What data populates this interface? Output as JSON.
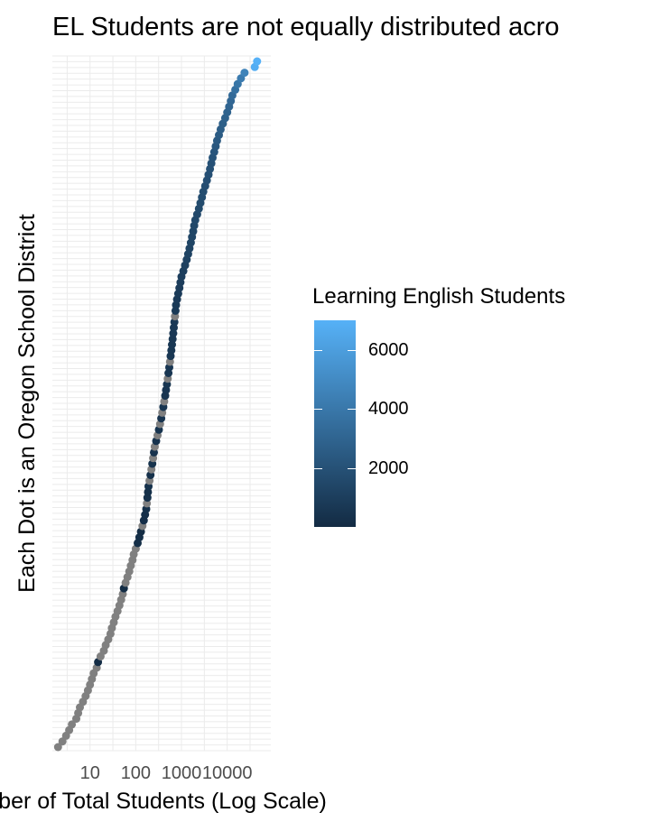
{
  "chart_data": {
    "type": "scatter",
    "title": "EL Students are not equally distributed acro",
    "xlabel": "ber of Total Students (Log Scale)",
    "ylabel": "Each Dot is an Oregon School District",
    "x_scale": "log10",
    "xlim": [
      1.5,
      90000
    ],
    "x_ticks": [
      10,
      100,
      1000,
      10000
    ],
    "x_tick_labels": [
      "10",
      "100",
      "1000",
      "10000"
    ],
    "y_ticks_labels_shown": false,
    "grid": true,
    "legend_position": "right",
    "color_scale": {
      "title": "Learning English Students",
      "low_color": "#132b43",
      "high_color": "#56b1f7",
      "na_color": "#808080",
      "range": [
        0,
        7000
      ],
      "breaks": [
        2000,
        4000,
        6000
      ],
      "break_labels": [
        "2000",
        "4000",
        "6000"
      ]
    },
    "series_description": "Districts ranked by total enrollment; gray = no EL data reported",
    "points": [
      [
        2,
        null
      ],
      [
        2.5,
        null
      ],
      [
        3,
        null
      ],
      [
        3.5,
        null
      ],
      [
        4,
        null
      ],
      [
        5,
        null
      ],
      [
        5.5,
        null
      ],
      [
        6,
        null
      ],
      [
        7,
        null
      ],
      [
        8,
        null
      ],
      [
        9,
        null
      ],
      [
        10,
        null
      ],
      [
        11,
        null
      ],
      [
        12,
        null
      ],
      [
        14,
        null
      ],
      [
        15,
        120
      ],
      [
        17,
        null
      ],
      [
        20,
        null
      ],
      [
        22,
        null
      ],
      [
        25,
        null
      ],
      [
        28,
        null
      ],
      [
        30,
        null
      ],
      [
        33,
        null
      ],
      [
        36,
        null
      ],
      [
        40,
        null
      ],
      [
        44,
        null
      ],
      [
        48,
        null
      ],
      [
        52,
        null
      ],
      [
        55,
        90
      ],
      [
        60,
        null
      ],
      [
        66,
        null
      ],
      [
        72,
        null
      ],
      [
        78,
        null
      ],
      [
        85,
        null
      ],
      [
        90,
        null
      ],
      [
        100,
        null
      ],
      [
        110,
        150
      ],
      [
        120,
        200
      ],
      [
        130,
        80
      ],
      [
        140,
        null
      ],
      [
        150,
        180
      ],
      [
        160,
        220
      ],
      [
        170,
        260
      ],
      [
        175,
        null
      ],
      [
        180,
        300
      ],
      [
        185,
        250
      ],
      [
        190,
        350
      ],
      [
        200,
        null
      ],
      [
        210,
        320
      ],
      [
        220,
        null
      ],
      [
        230,
        400
      ],
      [
        240,
        null
      ],
      [
        250,
        380
      ],
      [
        260,
        null
      ],
      [
        280,
        420
      ],
      [
        300,
        null
      ],
      [
        320,
        450
      ],
      [
        340,
        null
      ],
      [
        360,
        480
      ],
      [
        380,
        null
      ],
      [
        400,
        500
      ],
      [
        420,
        null
      ],
      [
        440,
        520
      ],
      [
        460,
        540
      ],
      [
        480,
        560
      ],
      [
        500,
        null
      ],
      [
        520,
        580
      ],
      [
        540,
        600
      ],
      [
        560,
        null
      ],
      [
        580,
        620
      ],
      [
        600,
        640
      ],
      [
        620,
        660
      ],
      [
        640,
        680
      ],
      [
        660,
        700
      ],
      [
        680,
        720
      ],
      [
        700,
        740
      ],
      [
        720,
        null
      ],
      [
        740,
        760
      ],
      [
        760,
        780
      ],
      [
        800,
        800
      ],
      [
        850,
        850
      ],
      [
        900,
        900
      ],
      [
        950,
        950
      ],
      [
        1000,
        1000
      ],
      [
        1100,
        1050
      ],
      [
        1200,
        1100
      ],
      [
        1300,
        1150
      ],
      [
        1400,
        1200
      ],
      [
        1500,
        1250
      ],
      [
        1600,
        1300
      ],
      [
        1700,
        1350
      ],
      [
        1800,
        1400
      ],
      [
        1900,
        1450
      ],
      [
        2000,
        1500
      ],
      [
        2200,
        1550
      ],
      [
        2400,
        1600
      ],
      [
        2600,
        1650
      ],
      [
        2800,
        1700
      ],
      [
        3000,
        1750
      ],
      [
        3300,
        1800
      ],
      [
        3600,
        1850
      ],
      [
        3900,
        1900
      ],
      [
        4200,
        1950
      ],
      [
        4500,
        2000
      ],
      [
        4800,
        2100
      ],
      [
        5200,
        2200
      ],
      [
        5600,
        2300
      ],
      [
        6000,
        2400
      ],
      [
        6600,
        2500
      ],
      [
        7200,
        2600
      ],
      [
        8000,
        2700
      ],
      [
        9000,
        2800
      ],
      [
        10000,
        2900
      ],
      [
        11000,
        3000
      ],
      [
        12000,
        3100
      ],
      [
        13000,
        3300
      ],
      [
        15000,
        3600
      ],
      [
        17000,
        3900
      ],
      [
        20000,
        4200
      ],
      [
        24000,
        4600
      ],
      [
        40000,
        6800
      ],
      [
        45000,
        7000
      ]
    ]
  }
}
